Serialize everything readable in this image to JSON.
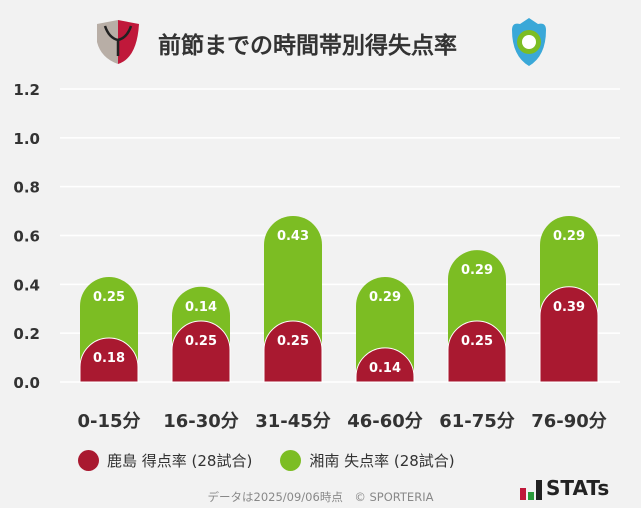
{
  "title": "前節までの時間帯別得失点率",
  "colors": {
    "home": "#a91930",
    "away": "#7cbd23"
  },
  "legend": [
    {
      "label": "鹿島 得点率 (28試合)"
    },
    {
      "label": "湘南 失点率 (28試合)"
    }
  ],
  "footer": "データは2025/09/06時点　© SPORTERIA",
  "brand": "STATs",
  "logos": {
    "home": "ANTLERS",
    "away": "BELLMARE"
  },
  "chart_data": {
    "type": "bar",
    "stacked": true,
    "categories": [
      "0-15分",
      "16-30分",
      "31-45分",
      "46-60分",
      "61-75分",
      "76-90分"
    ],
    "series": [
      {
        "name": "鹿島 得点率 (28試合)",
        "values": [
          0.18,
          0.25,
          0.25,
          0.14,
          0.25,
          0.39
        ]
      },
      {
        "name": "湘南 失点率 (28試合)",
        "values": [
          0.25,
          0.14,
          0.43,
          0.29,
          0.29,
          0.29
        ]
      }
    ],
    "ylim": [
      0,
      1.2
    ],
    "yticks": [
      "0.0",
      "0.2",
      "0.4",
      "0.6",
      "0.8",
      "1.0",
      "1.2"
    ],
    "grid": true,
    "legend_position": "bottom"
  }
}
